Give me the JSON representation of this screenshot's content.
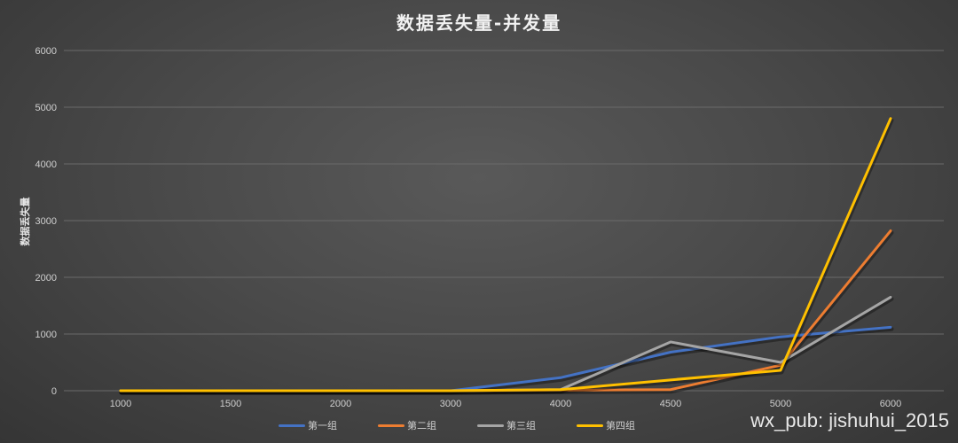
{
  "chart_data": {
    "type": "line",
    "title": "数据丢失量-并发量",
    "xlabel": "",
    "ylabel": "数据丢失量",
    "categories": [
      "1000",
      "1500",
      "2000",
      "3000",
      "4000",
      "4500",
      "5000",
      "6000"
    ],
    "ylim": [
      0,
      6000
    ],
    "yticks": [
      0,
      1000,
      2000,
      3000,
      4000,
      5000,
      6000
    ],
    "grid": true,
    "legend_position": "bottom",
    "series": [
      {
        "name": "第一组",
        "color": "#4472c4",
        "values": [
          0,
          0,
          0,
          0,
          230,
          680,
          950,
          1120
        ]
      },
      {
        "name": "第二组",
        "color": "#ed7d31",
        "values": [
          0,
          0,
          0,
          0,
          10,
          20,
          450,
          2820
        ]
      },
      {
        "name": "第三组",
        "color": "#a5a5a5",
        "values": [
          0,
          0,
          0,
          0,
          20,
          860,
          500,
          1650
        ]
      },
      {
        "name": "第四组",
        "color": "#ffc000",
        "values": [
          0,
          0,
          0,
          0,
          20,
          190,
          360,
          4800
        ]
      }
    ]
  },
  "watermark": "wx_pub: jishuhui_2015"
}
